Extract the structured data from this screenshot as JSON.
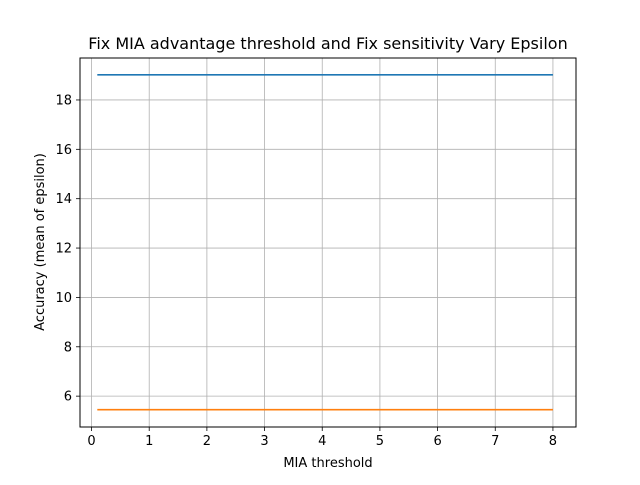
{
  "chart_data": {
    "type": "line",
    "title": "Fix MIA advantage threshold and Fix sensitivity Vary Epsilon",
    "xlabel": "MIA threshold",
    "ylabel": "Accuracy (mean of epsilon)",
    "xlim": [
      -0.2,
      8.4
    ],
    "ylim": [
      4.75,
      19.7
    ],
    "xticks": [
      0,
      1,
      2,
      3,
      4,
      5,
      6,
      7,
      8
    ],
    "yticks": [
      6,
      8,
      10,
      12,
      14,
      16,
      18
    ],
    "grid": true,
    "series": [
      {
        "color": "#1f77b4",
        "x": [
          0.1,
          8
        ],
        "y": [
          19.02,
          19.02
        ]
      },
      {
        "color": "#ff7f0e",
        "x": [
          0.1,
          8
        ],
        "y": [
          5.45,
          5.45
        ]
      }
    ]
  }
}
